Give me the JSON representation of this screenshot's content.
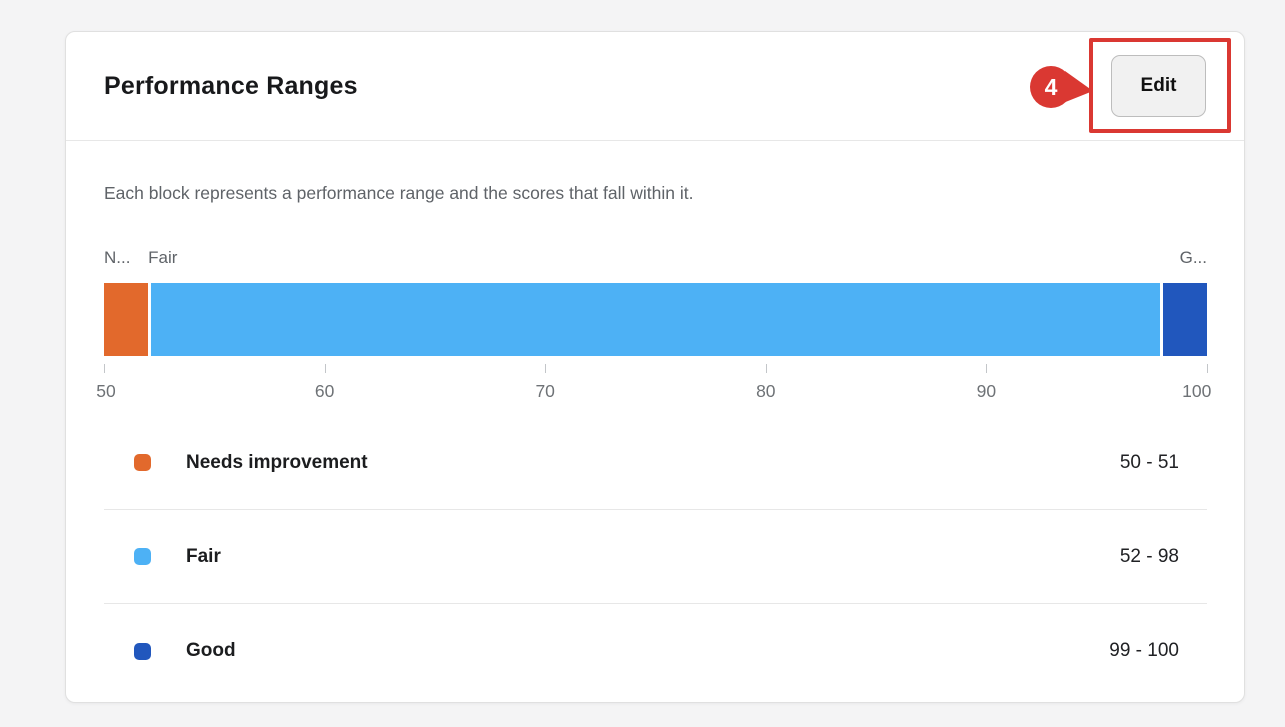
{
  "card": {
    "title": "Performance Ranges",
    "edit_button_label": "Edit",
    "description": "Each block represents a performance range and the scores that fall within it."
  },
  "annotation": {
    "step_number": "4",
    "color": "#da3832"
  },
  "chart_data": {
    "type": "bar",
    "variant": "horizontal-stacked-range",
    "title": "Performance Ranges",
    "axis": {
      "min": 50,
      "max": 100,
      "ticks": [
        50,
        60,
        70,
        80,
        90,
        100
      ]
    },
    "grid": false,
    "segments": [
      {
        "name": "Needs improvement",
        "bar_label": "N...",
        "start": 50,
        "end": 51,
        "display_span": 2,
        "color": "#e2692c",
        "range_label": "50 - 51"
      },
      {
        "name": "Fair",
        "bar_label": "Fair",
        "start": 52,
        "end": 98,
        "display_span": 46,
        "color": "#4db1f5",
        "range_label": "52 - 98"
      },
      {
        "name": "Good",
        "bar_label": "G...",
        "start": 99,
        "end": 100,
        "display_span": 2,
        "color": "#2157bd",
        "range_label": "99 - 100"
      }
    ]
  }
}
